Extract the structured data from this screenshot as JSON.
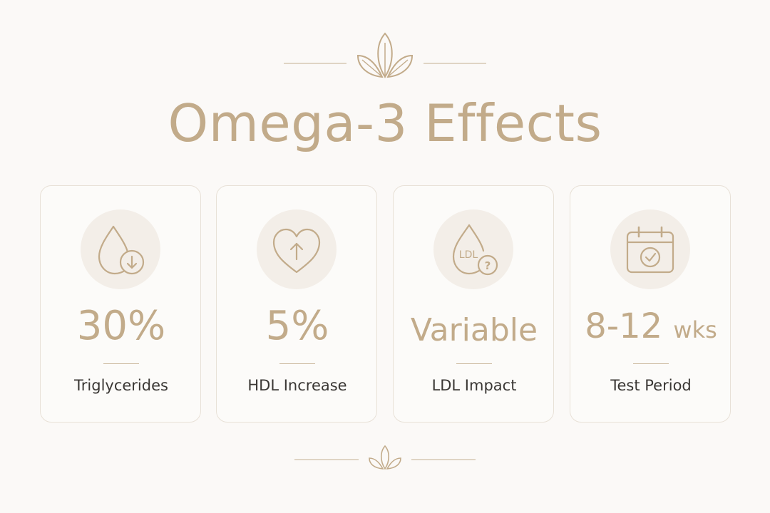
{
  "title": "Omega-3 Effects",
  "colors": {
    "accent": "#c2ab8a",
    "text": "#3a3734",
    "background": "#fbf9f7",
    "icon_bg": "#f3eee8",
    "card_border": "#e8e1d7"
  },
  "ornaments": {
    "top": "leaf-icon",
    "bottom": "leaf-icon"
  },
  "cards": [
    {
      "icon": "drop-down-arrow-icon",
      "value": "30%",
      "label": "Triglycerides"
    },
    {
      "icon": "heart-up-arrow-icon",
      "value": "5%",
      "label": "HDL Increase"
    },
    {
      "icon": "drop-question-icon",
      "icon_text": "LDL",
      "icon_mark": "?",
      "value": "Variable",
      "label": "LDL Impact"
    },
    {
      "icon": "calendar-check-icon",
      "value": "8-12",
      "value_unit": "wks",
      "label": "Test Period"
    }
  ]
}
